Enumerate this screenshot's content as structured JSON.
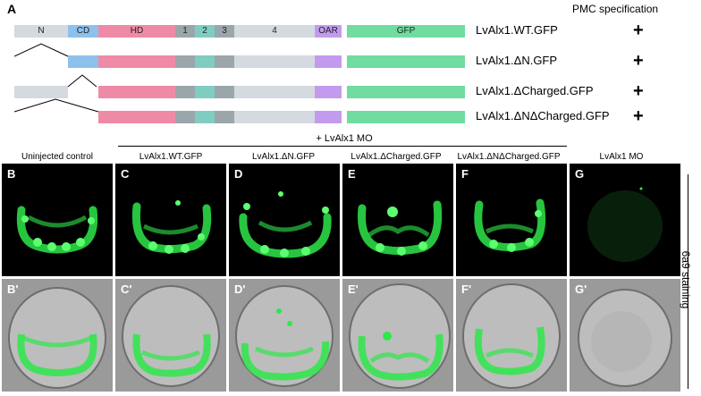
{
  "panel_a": {
    "letter": "A",
    "spec_header": "PMC specification",
    "segments": [
      {
        "label": "N",
        "color": "#d4dadf"
      },
      {
        "label": "CD",
        "color": "#8dc1ec"
      },
      {
        "label": "HD",
        "color": "#ef8aa6"
      },
      {
        "label": "1",
        "color": "#9ba6ab"
      },
      {
        "label": "2",
        "color": "#7fcdc1"
      },
      {
        "label": "3",
        "color": "#9ba6ab"
      },
      {
        "label": "4",
        "color": "#d4dadf"
      },
      {
        "label": "OAR",
        "color": "#c29bef"
      },
      {
        "label": "GFP",
        "color": "#70dca0"
      }
    ],
    "constructs": [
      {
        "name": "LvAlx1.WT.GFP",
        "result": "+"
      },
      {
        "name": "LvAlx1.ΔN.GFP",
        "result": "+"
      },
      {
        "name": "LvAlx1.ΔCharged.GFP",
        "result": "+"
      },
      {
        "name": "LvAlx1.ΔNΔCharged.GFP",
        "result": "+"
      }
    ]
  },
  "panel_b": {
    "mo_label": "+ LvAlx1 MO",
    "columns": [
      {
        "header": "Uninjected control",
        "top_letter": "B",
        "bottom_letter": "B'"
      },
      {
        "header": "LvAlx1.WT.GFP",
        "top_letter": "C",
        "bottom_letter": "C'"
      },
      {
        "header": "LvAlx1.ΔN.GFP",
        "top_letter": "D",
        "bottom_letter": "D'"
      },
      {
        "header": "LvAlx1.ΔCharged.GFP",
        "top_letter": "E",
        "bottom_letter": "E'"
      },
      {
        "header": "LvAlx1.ΔNΔCharged.GFP",
        "top_letter": "F",
        "bottom_letter": "F'"
      },
      {
        "header": "LvAlx1 MO",
        "top_letter": "G",
        "bottom_letter": "G'"
      }
    ],
    "side_label": "6a9 staining"
  },
  "colors": {
    "fluorescence": "#2ee84a",
    "dic_bg": "#9a9a9a"
  }
}
